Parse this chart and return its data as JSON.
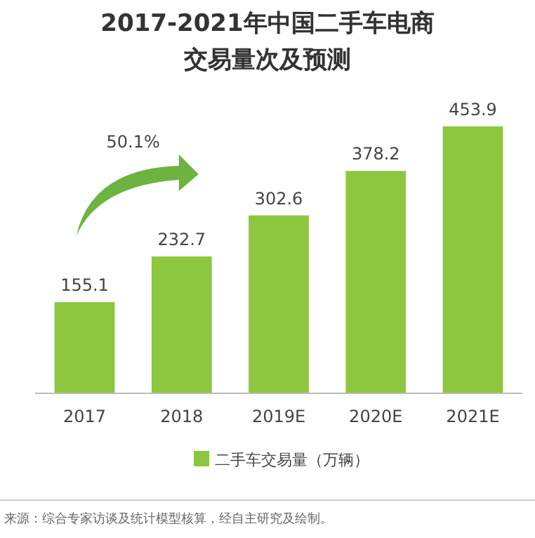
{
  "chart_data": {
    "type": "bar",
    "title": "2017-2021年中国二手车电商交易量次及预测",
    "categories": [
      "2017",
      "2018",
      "2019E",
      "2020E",
      "2021E"
    ],
    "series": [
      {
        "name": "二手车交易量（万辆）",
        "color": "#8dc63f",
        "values": [
          155.1,
          232.7,
          302.6,
          378.2,
          453.9
        ]
      }
    ],
    "data_labels": true,
    "legend": "bottom",
    "annotations": [
      "50.1%",
      "来源：综合专家访谈及统计模型核算，经自主研究及绘制。"
    ]
  }
}
